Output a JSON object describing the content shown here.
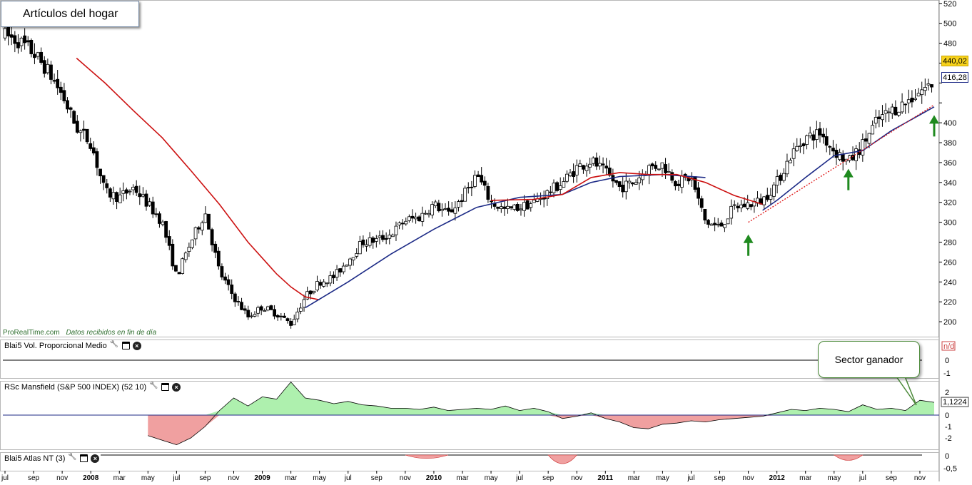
{
  "title": "Artículos del hogar",
  "source": {
    "brand": "ProRealTime.com",
    "note": "Datos recibidos en fin de día"
  },
  "callout": "Sector ganador",
  "price_tags": {
    "last": "440,02",
    "ma": "416,28"
  },
  "colors": {
    "up_candle": "#ffffff",
    "down_candle": "#000000",
    "ma_red": "#cc1111",
    "ma_blue": "#1c2a86",
    "arrow": "#1f8a1f",
    "trend_line": "#e02020",
    "rs_positive": "#aef0ae",
    "rs_negative": "#f0a0a0",
    "zero_line": "#1c2a86"
  },
  "icons": [
    "wrench-icon",
    "window-icon",
    "close-icon"
  ],
  "panels": {
    "volume": {
      "label": "Blai5 Vol. Proporcional Medio",
      "axis": [
        "n/d",
        "0",
        "-1"
      ]
    },
    "rs": {
      "label": "RSc Mansfield (S&P 500 INDEX) (52 10)",
      "axis": [
        "2",
        "1",
        "0",
        "-1",
        "-2"
      ],
      "value_tag": "1,1224"
    },
    "atlas": {
      "label": "Blai5 Atlas NT (3)",
      "axis": [
        "0",
        "-0,5"
      ]
    }
  },
  "chart_data": {
    "type": "candlestick",
    "title": "Artículos del hogar",
    "y_ticks": [
      200,
      220,
      240,
      260,
      280,
      300,
      320,
      340,
      360,
      380,
      400,
      420,
      440,
      460,
      480,
      500,
      520
    ],
    "y_tick_labels": [
      "200",
      "220",
      "240",
      "260",
      "280",
      "300",
      "320",
      "340",
      "360",
      "380",
      "400",
      "",
      "",
      "460",
      "480",
      "500",
      "520"
    ],
    "ylim": [
      185,
      522
    ],
    "x_range": [
      "2007-07",
      "2012-12"
    ],
    "x_tick_labels": [
      {
        "label": "jul",
        "date": "2007-07",
        "bold": false
      },
      {
        "label": "sep",
        "date": "2007-09",
        "bold": false
      },
      {
        "label": "nov",
        "date": "2007-11",
        "bold": false
      },
      {
        "label": "2008",
        "date": "2008-01",
        "bold": true
      },
      {
        "label": "mar",
        "date": "2008-03",
        "bold": false
      },
      {
        "label": "may",
        "date": "2008-05",
        "bold": false
      },
      {
        "label": "jul",
        "date": "2008-07",
        "bold": false
      },
      {
        "label": "sep",
        "date": "2008-09",
        "bold": false
      },
      {
        "label": "nov",
        "date": "2008-11",
        "bold": false
      },
      {
        "label": "2009",
        "date": "2009-01",
        "bold": true
      },
      {
        "label": "mar",
        "date": "2009-03",
        "bold": false
      },
      {
        "label": "may",
        "date": "2009-05",
        "bold": false
      },
      {
        "label": "jul",
        "date": "2009-07",
        "bold": false
      },
      {
        "label": "sep",
        "date": "2009-09",
        "bold": false
      },
      {
        "label": "nov",
        "date": "2009-11",
        "bold": false
      },
      {
        "label": "2010",
        "date": "2010-01",
        "bold": true
      },
      {
        "label": "mar",
        "date": "2010-03",
        "bold": false
      },
      {
        "label": "may",
        "date": "2010-05",
        "bold": false
      },
      {
        "label": "jul",
        "date": "2010-07",
        "bold": false
      },
      {
        "label": "sep",
        "date": "2010-09",
        "bold": false
      },
      {
        "label": "nov",
        "date": "2010-11",
        "bold": false
      },
      {
        "label": "2011",
        "date": "2011-01",
        "bold": true
      },
      {
        "label": "mar",
        "date": "2011-03",
        "bold": false
      },
      {
        "label": "may",
        "date": "2011-05",
        "bold": false
      },
      {
        "label": "jul",
        "date": "2011-07",
        "bold": false
      },
      {
        "label": "sep",
        "date": "2011-09",
        "bold": false
      },
      {
        "label": "nov",
        "date": "2011-11",
        "bold": false
      },
      {
        "label": "2012",
        "date": "2012-01",
        "bold": true
      },
      {
        "label": "mar",
        "date": "2012-03",
        "bold": false
      },
      {
        "label": "may",
        "date": "2012-05",
        "bold": false
      },
      {
        "label": "jul",
        "date": "2012-07",
        "bold": false
      },
      {
        "label": "sep",
        "date": "2012-09",
        "bold": false
      },
      {
        "label": "nov",
        "date": "2012-11",
        "bold": false
      }
    ],
    "price_path": [
      [
        "2007-07",
        488
      ],
      [
        "2007-08",
        482
      ],
      [
        "2007-09",
        470
      ],
      [
        "2007-10",
        452
      ],
      [
        "2007-11",
        428
      ],
      [
        "2007-12",
        395
      ],
      [
        "2008-01",
        380
      ],
      [
        "2008-02",
        330
      ],
      [
        "2008-03",
        325
      ],
      [
        "2008-04",
        335
      ],
      [
        "2008-05",
        318
      ],
      [
        "2008-06",
        300
      ],
      [
        "2008-07",
        245
      ],
      [
        "2008-08",
        280
      ],
      [
        "2008-09",
        310
      ],
      [
        "2008-10",
        250
      ],
      [
        "2008-11",
        225
      ],
      [
        "2008-12",
        205
      ],
      [
        "2009-01",
        215
      ],
      [
        "2009-02",
        208
      ],
      [
        "2009-03",
        198
      ],
      [
        "2009-04",
        225
      ],
      [
        "2009-05",
        240
      ],
      [
        "2009-06",
        245
      ],
      [
        "2009-07",
        262
      ],
      [
        "2009-08",
        280
      ],
      [
        "2009-09",
        282
      ],
      [
        "2009-10",
        288
      ],
      [
        "2009-11",
        302
      ],
      [
        "2009-12",
        305
      ],
      [
        "2010-01",
        318
      ],
      [
        "2010-02",
        308
      ],
      [
        "2010-03",
        325
      ],
      [
        "2010-04",
        348
      ],
      [
        "2010-05",
        320
      ],
      [
        "2010-06",
        312
      ],
      [
        "2010-07",
        315
      ],
      [
        "2010-08",
        320
      ],
      [
        "2010-09",
        330
      ],
      [
        "2010-10",
        340
      ],
      [
        "2010-11",
        355
      ],
      [
        "2010-12",
        362
      ],
      [
        "2011-01",
        350
      ],
      [
        "2011-02",
        335
      ],
      [
        "2011-03",
        340
      ],
      [
        "2011-04",
        355
      ],
      [
        "2011-05",
        358
      ],
      [
        "2011-06",
        340
      ],
      [
        "2011-07",
        345
      ],
      [
        "2011-08",
        300
      ],
      [
        "2011-09",
        295
      ],
      [
        "2011-10",
        315
      ],
      [
        "2011-11",
        318
      ],
      [
        "2011-12",
        322
      ],
      [
        "2012-01",
        340
      ],
      [
        "2012-02",
        368
      ],
      [
        "2012-03",
        385
      ],
      [
        "2012-04",
        390
      ],
      [
        "2012-05",
        372
      ],
      [
        "2012-06",
        360
      ],
      [
        "2012-07",
        378
      ],
      [
        "2012-08",
        402
      ],
      [
        "2012-09",
        412
      ],
      [
        "2012-10",
        420
      ],
      [
        "2012-11",
        432
      ],
      [
        "2012-12",
        440
      ]
    ],
    "series": [
      {
        "style": "red-line",
        "points": [
          [
            "2007-12",
            465
          ],
          [
            "2008-02",
            440
          ],
          [
            "2008-04",
            412
          ],
          [
            "2008-06",
            385
          ],
          [
            "2008-08",
            352
          ],
          [
            "2008-10",
            318
          ],
          [
            "2008-12",
            280
          ],
          [
            "2009-02",
            248
          ],
          [
            "2009-03",
            235
          ],
          [
            "2009-04",
            225
          ],
          [
            "2009-05",
            222
          ]
        ]
      },
      {
        "style": "blue-line",
        "points": [
          [
            "2009-04",
            214
          ],
          [
            "2009-07",
            240
          ],
          [
            "2009-10",
            268
          ],
          [
            "2010-01",
            293
          ],
          [
            "2010-04",
            315
          ],
          [
            "2010-07",
            325
          ],
          [
            "2010-10",
            328
          ],
          [
            "2010-12",
            340
          ],
          [
            "2011-02",
            346
          ],
          [
            "2011-05",
            348
          ],
          [
            "2011-08",
            345
          ]
        ]
      },
      {
        "style": "red-line",
        "points": [
          [
            "2010-05",
            322
          ],
          [
            "2010-08",
            323
          ],
          [
            "2010-10",
            328
          ],
          [
            "2010-12",
            345
          ],
          [
            "2011-02",
            350
          ],
          [
            "2011-04",
            348
          ],
          [
            "2011-06",
            348
          ],
          [
            "2011-08",
            340
          ],
          [
            "2011-10",
            327
          ],
          [
            "2011-12",
            318
          ]
        ]
      },
      {
        "style": "blue-line",
        "points": [
          [
            "2011-12",
            312
          ],
          [
            "2012-01",
            322
          ],
          [
            "2012-03",
            345
          ],
          [
            "2012-05",
            367
          ],
          [
            "2012-07",
            372
          ],
          [
            "2012-09",
            392
          ],
          [
            "2012-11",
            408
          ],
          [
            "2012-12",
            416
          ]
        ]
      }
    ],
    "trend_line": [
      [
        "2011-11",
        300
      ],
      [
        "2012-12",
        418
      ]
    ],
    "arrows": [
      {
        "date": "2011-11",
        "price": 282
      },
      {
        "date": "2012-06",
        "price": 348
      },
      {
        "date": "2012-12",
        "price": 402
      }
    ],
    "rs_panel": {
      "ylim": [
        -3,
        3
      ],
      "points": [
        [
          "2008-05",
          -1.8
        ],
        [
          "2008-06",
          -2.2
        ],
        [
          "2008-07",
          -2.6
        ],
        [
          "2008-08",
          -2.0
        ],
        [
          "2008-09",
          -1.0
        ],
        [
          "2008-10",
          0.4
        ],
        [
          "2008-11",
          1.5
        ],
        [
          "2008-12",
          0.8
        ],
        [
          "2009-01",
          1.6
        ],
        [
          "2009-02",
          1.4
        ],
        [
          "2009-03",
          2.9
        ],
        [
          "2009-04",
          1.5
        ],
        [
          "2009-05",
          1.3
        ],
        [
          "2009-06",
          1.0
        ],
        [
          "2009-07",
          1.2
        ],
        [
          "2009-08",
          0.9
        ],
        [
          "2009-09",
          0.8
        ],
        [
          "2009-10",
          0.6
        ],
        [
          "2009-11",
          0.6
        ],
        [
          "2009-12",
          0.5
        ],
        [
          "2010-01",
          0.7
        ],
        [
          "2010-02",
          0.4
        ],
        [
          "2010-03",
          0.5
        ],
        [
          "2010-04",
          0.6
        ],
        [
          "2010-05",
          0.5
        ],
        [
          "2010-06",
          0.8
        ],
        [
          "2010-07",
          0.4
        ],
        [
          "2010-08",
          0.6
        ],
        [
          "2010-09",
          0.3
        ],
        [
          "2010-10",
          -0.3
        ],
        [
          "2010-11",
          -0.1
        ],
        [
          "2010-12",
          0.2
        ],
        [
          "2011-01",
          -0.3
        ],
        [
          "2011-02",
          -0.6
        ],
        [
          "2011-03",
          -1.1
        ],
        [
          "2011-04",
          -1.2
        ],
        [
          "2011-05",
          -0.8
        ],
        [
          "2011-06",
          -0.7
        ],
        [
          "2011-07",
          -0.5
        ],
        [
          "2011-08",
          -0.6
        ],
        [
          "2011-09",
          -0.4
        ],
        [
          "2011-10",
          -0.3
        ],
        [
          "2011-11",
          -0.2
        ],
        [
          "2011-12",
          -0.1
        ],
        [
          "2012-01",
          0.2
        ],
        [
          "2012-02",
          0.5
        ],
        [
          "2012-03",
          0.4
        ],
        [
          "2012-04",
          0.6
        ],
        [
          "2012-05",
          0.5
        ],
        [
          "2012-06",
          0.3
        ],
        [
          "2012-07",
          0.9
        ],
        [
          "2012-08",
          0.5
        ],
        [
          "2012-09",
          0.6
        ],
        [
          "2012-10",
          0.4
        ],
        [
          "2012-11",
          1.3
        ],
        [
          "2012-12",
          1.12
        ]
      ]
    },
    "atlas_panel": {
      "ylim": [
        -0.6,
        0
      ],
      "dips": [
        {
          "start": "2009-11",
          "end": "2010-02",
          "depth": -0.15
        },
        {
          "start": "2010-09",
          "end": "2010-11",
          "depth": -0.55
        },
        {
          "start": "2012-05",
          "end": "2012-07",
          "depth": -0.3
        }
      ]
    }
  }
}
